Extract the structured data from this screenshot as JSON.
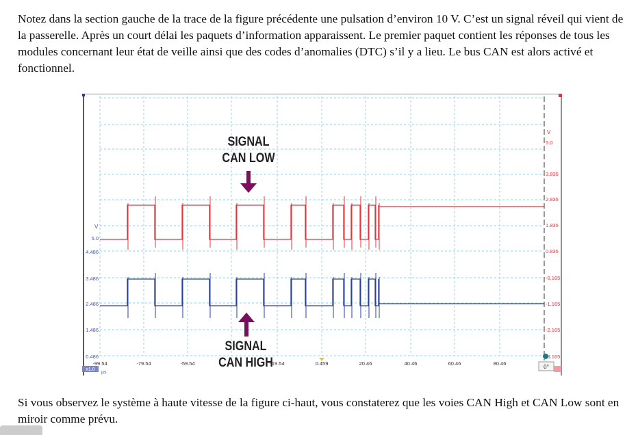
{
  "document": {
    "intro": "Notez dans la section gauche de la trace de la figure précédente une pulsation d’environ 10 V. C’est un signal réveil qui vient de la passerelle. Après un court délai les paquets d’information apparaissent. Le premier paquet contient les réponses de tous les modules concernant leur état de veille ainsi que des codes d’anomalies (DTC) s’il y a lieu. Le bus CAN est alors activé et fonctionnel.",
    "conclusion": "Si vous observez le système à haute vitesse de la figure ci-haut, vous constaterez que les voies CAN High et CAN Low sont en miroir comme prévu."
  },
  "figure": {
    "can_low_label": [
      "SIGNAL",
      "CAN LOW"
    ],
    "can_high_label": [
      "SIGNAL",
      "CAN HIGH"
    ],
    "left_axis": {
      "unit": "V",
      "labels": [
        "5.0",
        "4.486",
        "3.486",
        "2.486",
        "1.486",
        "0.486"
      ],
      "scale": "x1.0"
    },
    "right_axis": {
      "unit": "V",
      "labels": [
        "5.0",
        "3.835",
        "2.835",
        "1.835",
        "0.835",
        "-0.165",
        "-1.165",
        "-2.165",
        "-3.165"
      ],
      "scale": "x1.0"
    },
    "x_axis": {
      "unit": "µs",
      "labels": [
        "-99.54",
        "-79.54",
        "-59.54",
        "-39.54",
        "-19.54",
        "0.459",
        "20.46",
        "40.46",
        "60.46",
        "80.46"
      ]
    },
    "trigger_box": "0°",
    "colors": {
      "can_low": "#e8323a",
      "can_high": "#2a3f9a",
      "arrow": "#7a0f5c",
      "grid": "#8fd3e6"
    }
  }
}
